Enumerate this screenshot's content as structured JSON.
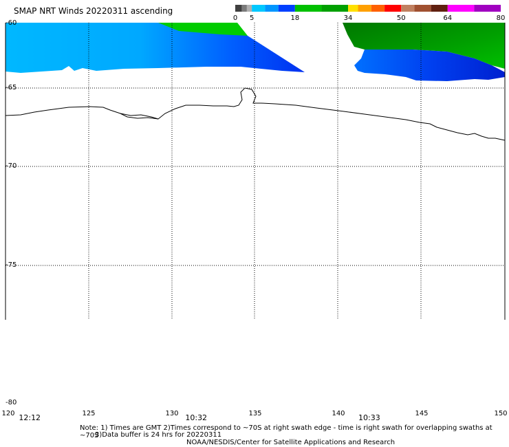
{
  "title": "SMAP NRT Winds 20220311 ascending",
  "colorbar": {
    "ticks": [
      {
        "label": "0",
        "value": 0
      },
      {
        "label": "5",
        "value": 5
      },
      {
        "label": "18",
        "value": 18
      },
      {
        "label": "34",
        "value": 34
      },
      {
        "label": "50",
        "value": 50
      },
      {
        "label": "64",
        "value": 64
      },
      {
        "label": "80",
        "value": 80
      }
    ],
    "segments": [
      {
        "from": 0,
        "to": 2,
        "color": "#404040"
      },
      {
        "from": 2,
        "to": 3.5,
        "color": "#7a7a7a"
      },
      {
        "from": 3.5,
        "to": 5,
        "color": "#b0b0b0"
      },
      {
        "from": 5,
        "to": 9,
        "color": "#00c8ff"
      },
      {
        "from": 9,
        "to": 13,
        "color": "#0096ff"
      },
      {
        "from": 13,
        "to": 18,
        "color": "#0040ff"
      },
      {
        "from": 18,
        "to": 26,
        "color": "#00c000"
      },
      {
        "from": 26,
        "to": 34,
        "color": "#00a000"
      },
      {
        "from": 34,
        "to": 37,
        "color": "#ffe000"
      },
      {
        "from": 37,
        "to": 41,
        "color": "#ffa000"
      },
      {
        "from": 41,
        "to": 45,
        "color": "#ff6000"
      },
      {
        "from": 45,
        "to": 50,
        "color": "#ff0000"
      },
      {
        "from": 50,
        "to": 54,
        "color": "#c08060"
      },
      {
        "from": 54,
        "to": 59,
        "color": "#a05030"
      },
      {
        "from": 59,
        "to": 64,
        "color": "#602010"
      },
      {
        "from": 64,
        "to": 72,
        "color": "#ff00ff"
      },
      {
        "from": 72,
        "to": 80,
        "color": "#a000c0"
      }
    ]
  },
  "map": {
    "lon_range": [
      120,
      150
    ],
    "lat_range": [
      -60,
      -80
    ],
    "lon_ticks": [
      "120",
      "125",
      "130",
      "135",
      "140",
      "145",
      "150"
    ],
    "lat_ticks": [
      "-60",
      "-65",
      "-70",
      "-75",
      "-80"
    ],
    "grid": "dotted"
  },
  "times": [
    {
      "label": "12:12",
      "lon": 120.8
    },
    {
      "label": "10:32",
      "lon": 130.8
    },
    {
      "label": "10:33",
      "lon": 141.2
    }
  ],
  "notes": {
    "line1": "Note: 1) Times are GMT 2)Times correspond to ~70S at right swath edge - time is right swath for overlapping swaths at ~70S",
    "line2": "3)Data buffer is 24 hrs for 20220311",
    "line3": "NOAA/NESDIS/Center for Satellite Applications and Research"
  },
  "colors": {
    "wind_light": "#00c8ff",
    "wind_mid": "#0096ff",
    "wind_dark": "#0040ff",
    "wind_green": "#00c000",
    "wind_green_dark": "#008000",
    "coastline": "#000000"
  }
}
